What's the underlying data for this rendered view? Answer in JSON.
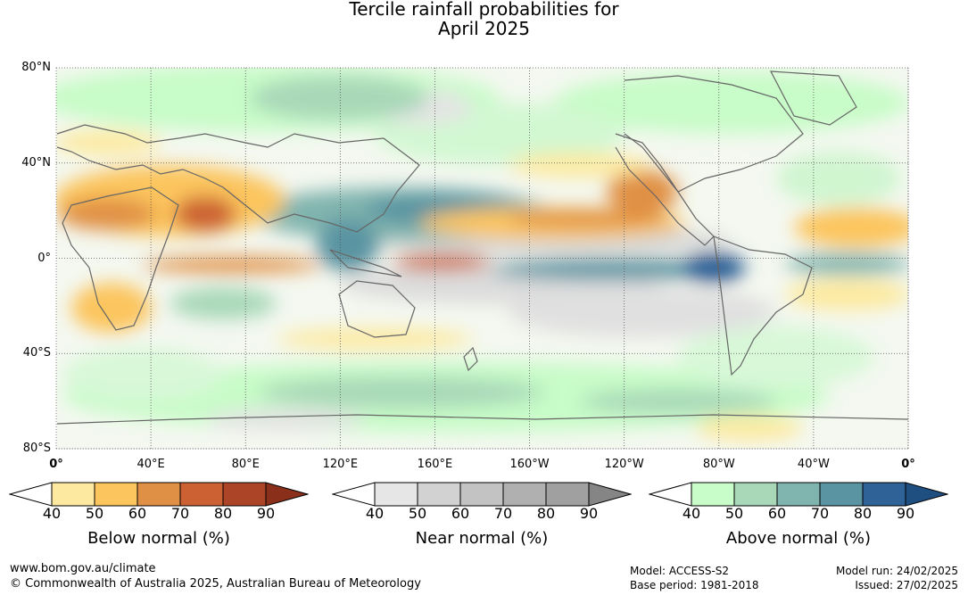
{
  "title_lines": [
    "Tercile rainfall probabilities for",
    "April 2025"
  ],
  "lat_labels": [
    {
      "value": 80,
      "label": "80°N"
    },
    {
      "value": 40,
      "label": "40°N"
    },
    {
      "value": 0,
      "label": "0°"
    },
    {
      "value": -40,
      "label": "40°S"
    },
    {
      "value": -80,
      "label": "80°S"
    }
  ],
  "lon_labels": [
    {
      "value": 0,
      "label": "0°"
    },
    {
      "value": 40,
      "label": "40°E"
    },
    {
      "value": 80,
      "label": "80°E"
    },
    {
      "value": 120,
      "label": "120°E"
    },
    {
      "value": 160,
      "label": "160°E"
    },
    {
      "value": 200,
      "label": "160°W"
    },
    {
      "value": 240,
      "label": "120°W"
    },
    {
      "value": 280,
      "label": "80°W"
    },
    {
      "value": 320,
      "label": "40°W"
    },
    {
      "value": 360,
      "label": "0°"
    }
  ],
  "map_extent": {
    "lon": [
      0,
      360
    ],
    "lat": [
      -80,
      80
    ]
  },
  "colorbars": [
    {
      "id": "below",
      "title": "Below normal (%)",
      "ticks": [
        "40",
        "50",
        "60",
        "70",
        "80",
        "90"
      ],
      "colors": [
        "#ffffff",
        "#fdeaa0",
        "#fcc55d",
        "#e09045",
        "#cc6233",
        "#ac4527",
        "#8a2f1a"
      ]
    },
    {
      "id": "near",
      "title": "Near normal (%)",
      "ticks": [
        "40",
        "50",
        "60",
        "70",
        "80",
        "90"
      ],
      "colors": [
        "#ffffff",
        "#e6e6e6",
        "#d2d2d2",
        "#c3c3c3",
        "#b0b0b0",
        "#a0a0a0",
        "#858585"
      ]
    },
    {
      "id": "above",
      "title": "Above normal (%)",
      "ticks": [
        "40",
        "50",
        "60",
        "70",
        "80",
        "90"
      ],
      "colors": [
        "#ffffff",
        "#c8fcc8",
        "#a8d8b8",
        "#80b4ae",
        "#5a94a2",
        "#2f6296",
        "#1e4f80"
      ]
    }
  ],
  "footer": {
    "website": "www.bom.gov.au/climate",
    "copyright": "© Commonwealth of Australia 2025, Australian Bureau of Meteorology",
    "model": "Model: ACCESS-S2",
    "base_period": "Base period: 1981-2018",
    "model_run": "Model run: 24/02/2025",
    "issued": "Issued: 27/02/2025"
  }
}
